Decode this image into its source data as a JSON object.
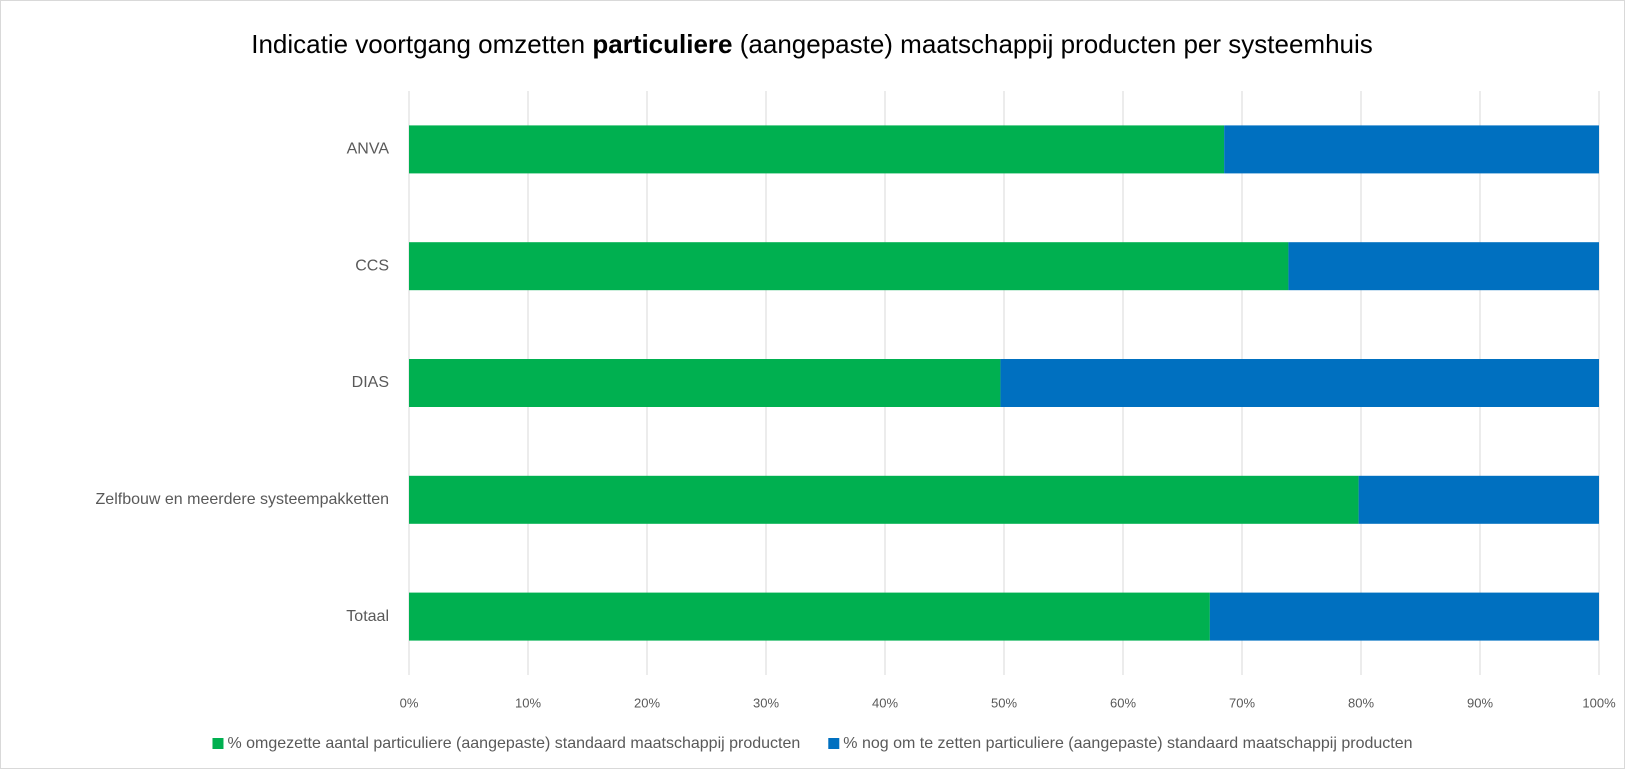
{
  "chart_data": {
    "type": "stacked_bar_horizontal",
    "title_parts": [
      {
        "text": "Indicatie voortgang omzetten "
      },
      {
        "text": "particuliere",
        "bold": true
      },
      {
        "text": " (aangepaste) maatschappij producten per systeemhuis"
      }
    ],
    "categories": [
      "ANVA",
      "CCS",
      "DIAS",
      "Zelfbouw en meerdere systeempakketten",
      "Totaal"
    ],
    "series": [
      {
        "name": "% omgezette aantal particuliere (aangepaste) standaard maatschappij producten",
        "color": "#00b050",
        "values": [
          68.5,
          73.9,
          49.7,
          79.8,
          67.3
        ]
      },
      {
        "name": "% nog om te zetten particuliere (aangepaste) standaard maatschappij producten",
        "color": "#0070c0",
        "values": [
          31.5,
          26.1,
          50.3,
          20.2,
          32.7
        ]
      }
    ],
    "xlim": [
      0,
      100
    ],
    "xticks": [
      {
        "value": 0,
        "label": "0%"
      },
      {
        "value": 10,
        "label": "10%"
      },
      {
        "value": 20,
        "label": "20%"
      },
      {
        "value": 30,
        "label": "30%"
      },
      {
        "value": 40,
        "label": "40%"
      },
      {
        "value": 50,
        "label": "50%"
      },
      {
        "value": 60,
        "label": "60%"
      },
      {
        "value": 70,
        "label": "70%"
      },
      {
        "value": 80,
        "label": "80%"
      },
      {
        "value": 90,
        "label": "90%"
      },
      {
        "value": 100,
        "label": "100%"
      }
    ],
    "grid": true,
    "legend": "bottom"
  }
}
